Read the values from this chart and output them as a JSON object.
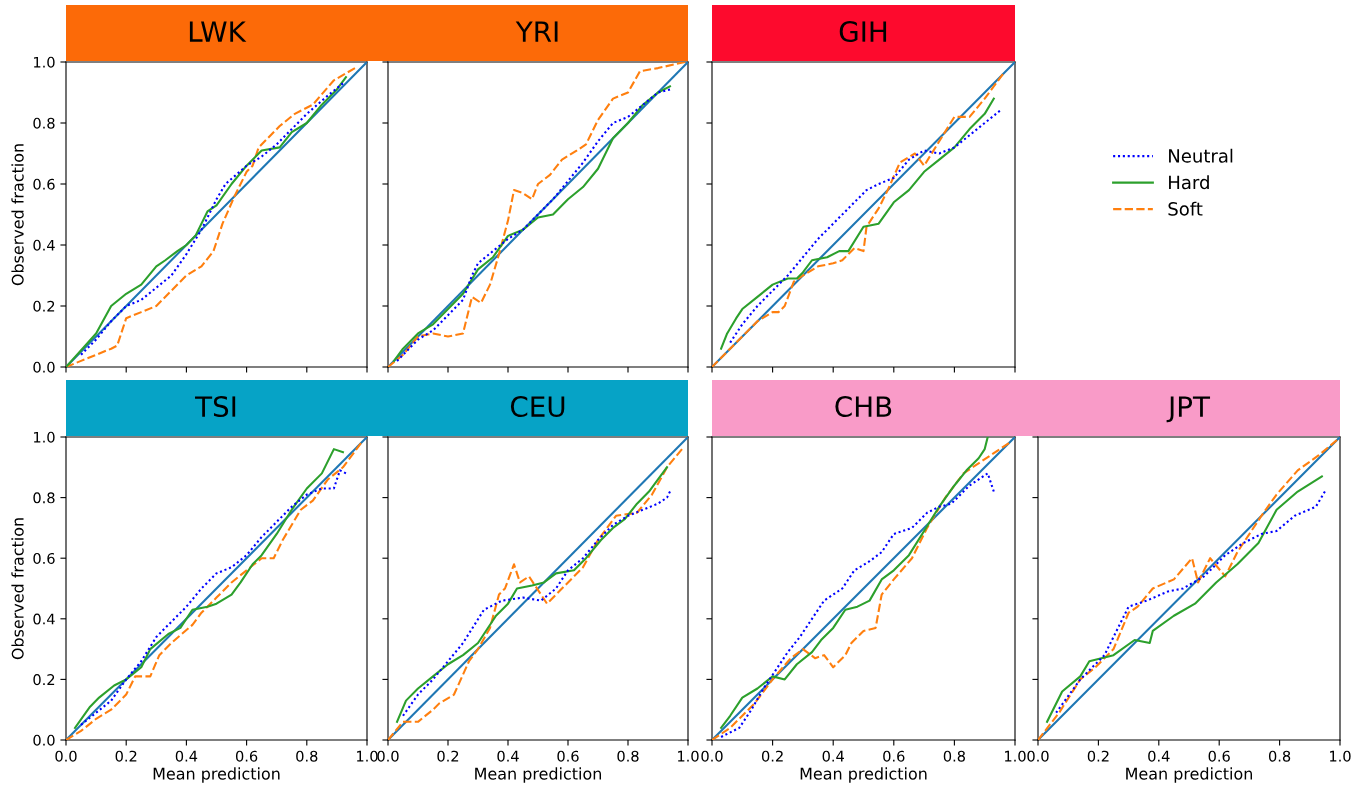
{
  "chart_data": [
    {
      "type": "line",
      "title": "LWK",
      "ylabel": "Observed fraction",
      "xlim": [
        0,
        1
      ],
      "ylim": [
        0,
        1
      ],
      "xticks": [
        {
          "value": 0,
          "label": null
        },
        {
          "value": 0.2,
          "label": null
        },
        {
          "value": 0.4,
          "label": null
        },
        {
          "value": 0.6,
          "label": null
        },
        {
          "value": 0.8,
          "label": null
        },
        {
          "value": 1,
          "label": null
        }
      ],
      "yticks": [
        {
          "value": 0,
          "label": "0.0"
        },
        {
          "value": 0.2,
          "label": "0.2"
        },
        {
          "value": 0.4,
          "label": "0.4"
        },
        {
          "value": 0.6,
          "label": "0.6"
        },
        {
          "value": 0.8,
          "label": "0.8"
        },
        {
          "value": 1,
          "label": "1.0"
        }
      ],
      "tick_labels": "y",
      "series": [
        {
          "color": "#0000ff",
          "line_style": "dotted",
          "x": [
            0.05,
            0.1,
            0.15,
            0.2,
            0.25,
            0.3,
            0.35,
            0.4,
            0.45,
            0.5,
            0.53,
            0.6,
            0.65,
            0.7,
            0.75,
            0.8,
            0.87,
            0.92
          ],
          "values": [
            0.04,
            0.09,
            0.15,
            0.2,
            0.22,
            0.26,
            0.3,
            0.37,
            0.45,
            0.55,
            0.6,
            0.66,
            0.69,
            0.73,
            0.78,
            0.83,
            0.89,
            0.93
          ]
        },
        {
          "color": "#2ca02c",
          "line_style": "solid",
          "x": [
            0.0,
            0.1,
            0.15,
            0.2,
            0.25,
            0.3,
            0.33,
            0.37,
            0.4,
            0.43,
            0.47,
            0.5,
            0.55,
            0.6,
            0.65,
            0.71,
            0.75,
            0.8,
            0.85,
            0.9,
            0.93
          ],
          "values": [
            0.0,
            0.11,
            0.2,
            0.24,
            0.27,
            0.33,
            0.35,
            0.38,
            0.4,
            0.43,
            0.51,
            0.53,
            0.6,
            0.66,
            0.71,
            0.72,
            0.77,
            0.8,
            0.86,
            0.91,
            0.95
          ]
        },
        {
          "color": "#ff7f0e",
          "line_style": "dashed",
          "x": [
            0.0,
            0.05,
            0.1,
            0.15,
            0.17,
            0.2,
            0.25,
            0.3,
            0.35,
            0.4,
            0.45,
            0.49,
            0.52,
            0.56,
            0.6,
            0.62,
            0.64,
            0.67,
            0.71,
            0.76,
            0.82,
            0.89,
            0.96
          ],
          "values": [
            0.0,
            0.02,
            0.04,
            0.06,
            0.07,
            0.16,
            0.18,
            0.2,
            0.25,
            0.3,
            0.33,
            0.38,
            0.47,
            0.56,
            0.64,
            0.66,
            0.72,
            0.75,
            0.79,
            0.83,
            0.86,
            0.94,
            0.98
          ]
        },
        {
          "color": "#1f77b4",
          "line_style": "solid",
          "x": [
            0,
            1
          ],
          "values": [
            0,
            1
          ]
        }
      ]
    },
    {
      "type": "line",
      "title": "YRI",
      "xlim": [
        0,
        1
      ],
      "ylim": [
        0,
        1
      ],
      "xticks": [
        {
          "value": 0,
          "label": null
        },
        {
          "value": 0.2,
          "label": null
        },
        {
          "value": 0.4,
          "label": null
        },
        {
          "value": 0.6,
          "label": null
        },
        {
          "value": 0.8,
          "label": null
        },
        {
          "value": 1,
          "label": null
        }
      ],
      "yticks": [
        {
          "value": 0,
          "label": null
        },
        {
          "value": 0.2,
          "label": null
        },
        {
          "value": 0.4,
          "label": null
        },
        {
          "value": 0.6,
          "label": null
        },
        {
          "value": 0.8,
          "label": null
        },
        {
          "value": 1,
          "label": null
        }
      ],
      "tick_labels": false,
      "series": [
        {
          "color": "#0000ff",
          "line_style": "dotted",
          "x": [
            0.03,
            0.1,
            0.15,
            0.2,
            0.25,
            0.28,
            0.3,
            0.35,
            0.4,
            0.45,
            0.5,
            0.55,
            0.6,
            0.65,
            0.7,
            0.75,
            0.8,
            0.85,
            0.9,
            0.94
          ],
          "values": [
            0.02,
            0.09,
            0.12,
            0.17,
            0.22,
            0.3,
            0.34,
            0.38,
            0.42,
            0.45,
            0.5,
            0.55,
            0.61,
            0.67,
            0.74,
            0.8,
            0.82,
            0.86,
            0.9,
            0.91
          ]
        },
        {
          "color": "#2ca02c",
          "line_style": "solid",
          "x": [
            0.02,
            0.05,
            0.1,
            0.15,
            0.2,
            0.25,
            0.3,
            0.35,
            0.4,
            0.45,
            0.5,
            0.55,
            0.6,
            0.65,
            0.7,
            0.75,
            0.8,
            0.85,
            0.9,
            0.94
          ],
          "values": [
            0.02,
            0.06,
            0.11,
            0.14,
            0.19,
            0.24,
            0.32,
            0.36,
            0.43,
            0.45,
            0.49,
            0.5,
            0.55,
            0.59,
            0.65,
            0.75,
            0.8,
            0.86,
            0.9,
            0.92
          ]
        },
        {
          "color": "#ff7f0e",
          "line_style": "dashed",
          "x": [
            0.0,
            0.05,
            0.1,
            0.15,
            0.2,
            0.25,
            0.28,
            0.31,
            0.34,
            0.37,
            0.4,
            0.42,
            0.45,
            0.48,
            0.5,
            0.54,
            0.58,
            0.63,
            0.66,
            0.7,
            0.75,
            0.8,
            0.84,
            0.9,
            0.99
          ],
          "values": [
            0.0,
            0.04,
            0.1,
            0.11,
            0.1,
            0.11,
            0.23,
            0.21,
            0.27,
            0.37,
            0.48,
            0.58,
            0.57,
            0.55,
            0.6,
            0.63,
            0.68,
            0.71,
            0.73,
            0.81,
            0.88,
            0.9,
            0.97,
            0.98,
            1.0
          ]
        },
        {
          "color": "#1f77b4",
          "line_style": "solid",
          "x": [
            0,
            1
          ],
          "values": [
            0,
            1
          ]
        }
      ]
    },
    {
      "type": "line",
      "title": "GIH",
      "xlim": [
        0,
        1
      ],
      "ylim": [
        0,
        1
      ],
      "xticks": [
        {
          "value": 0,
          "label": null
        },
        {
          "value": 0.2,
          "label": null
        },
        {
          "value": 0.4,
          "label": null
        },
        {
          "value": 0.6,
          "label": null
        },
        {
          "value": 0.8,
          "label": null
        },
        {
          "value": 1,
          "label": null
        }
      ],
      "yticks": [
        {
          "value": 0,
          "label": null
        },
        {
          "value": 0.2,
          "label": null
        },
        {
          "value": 0.4,
          "label": null
        },
        {
          "value": 0.6,
          "label": null
        },
        {
          "value": 0.8,
          "label": null
        },
        {
          "value": 1,
          "label": null
        }
      ],
      "tick_labels": false,
      "legend": "right",
      "series": [
        {
          "name": "Neutral",
          "color": "#0000ff",
          "line_style": "dotted",
          "x": [
            0.06,
            0.1,
            0.15,
            0.2,
            0.25,
            0.3,
            0.35,
            0.42,
            0.51,
            0.55,
            0.6,
            0.65,
            0.7,
            0.75,
            0.8,
            0.85,
            0.9,
            0.95
          ],
          "values": [
            0.08,
            0.14,
            0.2,
            0.25,
            0.3,
            0.36,
            0.42,
            0.49,
            0.58,
            0.6,
            0.62,
            0.68,
            0.71,
            0.7,
            0.72,
            0.76,
            0.8,
            0.84
          ]
        },
        {
          "name": "Hard",
          "color": "#2ca02c",
          "line_style": "solid",
          "x": [
            0.03,
            0.05,
            0.08,
            0.1,
            0.15,
            0.2,
            0.25,
            0.28,
            0.3,
            0.33,
            0.38,
            0.42,
            0.45,
            0.5,
            0.55,
            0.6,
            0.65,
            0.7,
            0.75,
            0.8,
            0.85,
            0.9,
            0.93
          ],
          "values": [
            0.06,
            0.11,
            0.16,
            0.19,
            0.23,
            0.27,
            0.29,
            0.29,
            0.31,
            0.35,
            0.36,
            0.38,
            0.38,
            0.46,
            0.47,
            0.54,
            0.58,
            0.64,
            0.68,
            0.72,
            0.78,
            0.83,
            0.88
          ]
        },
        {
          "name": "Soft",
          "color": "#ff7f0e",
          "line_style": "dashed",
          "x": [
            0.0,
            0.05,
            0.1,
            0.15,
            0.2,
            0.22,
            0.24,
            0.27,
            0.3,
            0.35,
            0.4,
            0.43,
            0.47,
            0.5,
            0.51,
            0.55,
            0.58,
            0.62,
            0.67,
            0.7,
            0.75,
            0.8,
            0.85,
            0.9,
            0.96
          ],
          "values": [
            0.0,
            0.05,
            0.1,
            0.15,
            0.18,
            0.18,
            0.2,
            0.28,
            0.3,
            0.33,
            0.34,
            0.35,
            0.39,
            0.38,
            0.46,
            0.52,
            0.58,
            0.67,
            0.7,
            0.66,
            0.74,
            0.82,
            0.82,
            0.88,
            0.96
          ]
        },
        {
          "color": "#1f77b4",
          "line_style": "solid",
          "x": [
            0,
            1
          ],
          "values": [
            0,
            1
          ]
        }
      ]
    },
    {
      "type": "line",
      "title": "TSI",
      "xlabel": "Mean prediction",
      "ylabel": "Observed fraction",
      "xlim": [
        0,
        1
      ],
      "ylim": [
        0,
        1
      ],
      "xticks": [
        {
          "value": 0,
          "label": "0.0"
        },
        {
          "value": 0.2,
          "label": "0.2"
        },
        {
          "value": 0.4,
          "label": "0.4"
        },
        {
          "value": 0.6,
          "label": "0.6"
        },
        {
          "value": 0.8,
          "label": "0.8"
        },
        {
          "value": 1,
          "label": "1.0"
        }
      ],
      "yticks": [
        {
          "value": 0,
          "label": "0.0"
        },
        {
          "value": 0.2,
          "label": "0.2"
        },
        {
          "value": 0.4,
          "label": "0.4"
        },
        {
          "value": 0.6,
          "label": "0.6"
        },
        {
          "value": 0.8,
          "label": "0.8"
        },
        {
          "value": 1,
          "label": "1.0"
        }
      ],
      "series": [
        {
          "color": "#0000ff",
          "line_style": "dotted",
          "x": [
            0.05,
            0.1,
            0.15,
            0.2,
            0.25,
            0.3,
            0.35,
            0.4,
            0.45,
            0.5,
            0.55,
            0.6,
            0.65,
            0.7,
            0.75,
            0.8,
            0.85,
            0.89,
            0.91,
            0.93
          ],
          "values": [
            0.05,
            0.09,
            0.13,
            0.2,
            0.26,
            0.34,
            0.39,
            0.44,
            0.5,
            0.55,
            0.57,
            0.61,
            0.67,
            0.72,
            0.77,
            0.81,
            0.83,
            0.83,
            0.89,
            0.88
          ]
        },
        {
          "color": "#2ca02c",
          "line_style": "solid",
          "x": [
            0.03,
            0.08,
            0.11,
            0.16,
            0.2,
            0.25,
            0.28,
            0.34,
            0.38,
            0.42,
            0.47,
            0.5,
            0.55,
            0.58,
            0.62,
            0.65,
            0.7,
            0.75,
            0.8,
            0.85,
            0.89,
            0.92
          ],
          "values": [
            0.04,
            0.11,
            0.14,
            0.18,
            0.2,
            0.24,
            0.3,
            0.35,
            0.37,
            0.43,
            0.44,
            0.45,
            0.48,
            0.52,
            0.58,
            0.61,
            0.68,
            0.76,
            0.83,
            0.88,
            0.96,
            0.95
          ]
        },
        {
          "color": "#ff7f0e",
          "line_style": "dashed",
          "x": [
            0.0,
            0.05,
            0.1,
            0.15,
            0.2,
            0.23,
            0.28,
            0.31,
            0.35,
            0.42,
            0.45,
            0.5,
            0.55,
            0.6,
            0.65,
            0.69,
            0.72,
            0.78,
            0.82,
            0.87,
            0.92,
            0.98
          ],
          "values": [
            0.0,
            0.03,
            0.07,
            0.1,
            0.15,
            0.21,
            0.21,
            0.28,
            0.32,
            0.38,
            0.42,
            0.47,
            0.52,
            0.56,
            0.6,
            0.6,
            0.66,
            0.76,
            0.79,
            0.86,
            0.9,
            0.98
          ]
        },
        {
          "color": "#1f77b4",
          "line_style": "solid",
          "x": [
            0,
            1
          ],
          "values": [
            0,
            1
          ]
        }
      ]
    },
    {
      "type": "line",
      "title": "CEU",
      "xlabel": "Mean prediction",
      "xlim": [
        0,
        1
      ],
      "ylim": [
        0,
        1
      ],
      "xticks": [
        {
          "value": 0,
          "label": "0.0"
        },
        {
          "value": 0.2,
          "label": "0.2"
        },
        {
          "value": 0.4,
          "label": "0.4"
        },
        {
          "value": 0.6,
          "label": "0.6"
        },
        {
          "value": 0.8,
          "label": "0.8"
        },
        {
          "value": 1,
          "label": "1.0"
        }
      ],
      "yticks": [
        {
          "value": 0,
          "label": null
        },
        {
          "value": 0.2,
          "label": null
        },
        {
          "value": 0.4,
          "label": null
        },
        {
          "value": 0.6,
          "label": null
        },
        {
          "value": 0.8,
          "label": null
        },
        {
          "value": 1,
          "label": null
        }
      ],
      "tick_labels": "x",
      "series": [
        {
          "color": "#0000ff",
          "line_style": "dotted",
          "x": [
            0.05,
            0.1,
            0.15,
            0.2,
            0.25,
            0.32,
            0.38,
            0.45,
            0.51,
            0.56,
            0.6,
            0.65,
            0.7,
            0.75,
            0.8,
            0.85,
            0.9,
            0.93,
            0.94
          ],
          "values": [
            0.08,
            0.15,
            0.2,
            0.26,
            0.32,
            0.43,
            0.46,
            0.47,
            0.46,
            0.5,
            0.56,
            0.6,
            0.66,
            0.71,
            0.74,
            0.76,
            0.78,
            0.8,
            0.82
          ]
        },
        {
          "color": "#2ca02c",
          "line_style": "solid",
          "x": [
            0.03,
            0.06,
            0.1,
            0.15,
            0.2,
            0.25,
            0.3,
            0.36,
            0.4,
            0.43,
            0.48,
            0.52,
            0.56,
            0.62,
            0.66,
            0.71,
            0.75,
            0.79,
            0.83,
            0.87,
            0.9,
            0.93
          ],
          "values": [
            0.06,
            0.13,
            0.17,
            0.21,
            0.25,
            0.28,
            0.32,
            0.41,
            0.45,
            0.5,
            0.51,
            0.52,
            0.55,
            0.56,
            0.6,
            0.66,
            0.7,
            0.73,
            0.78,
            0.82,
            0.86,
            0.9
          ]
        },
        {
          "color": "#ff7f0e",
          "line_style": "dashed",
          "x": [
            0.0,
            0.05,
            0.1,
            0.15,
            0.17,
            0.22,
            0.27,
            0.3,
            0.34,
            0.37,
            0.39,
            0.42,
            0.44,
            0.47,
            0.53,
            0.59,
            0.65,
            0.7,
            0.76,
            0.83,
            0.88,
            0.93,
            0.98
          ],
          "values": [
            0.0,
            0.06,
            0.06,
            0.1,
            0.12,
            0.15,
            0.26,
            0.3,
            0.37,
            0.48,
            0.5,
            0.58,
            0.52,
            0.54,
            0.45,
            0.51,
            0.57,
            0.66,
            0.74,
            0.75,
            0.81,
            0.9,
            0.96
          ]
        },
        {
          "color": "#1f77b4",
          "line_style": "solid",
          "x": [
            0,
            1
          ],
          "values": [
            0,
            1
          ]
        }
      ]
    },
    {
      "type": "line",
      "title": "CHB",
      "xlabel": "Mean prediction",
      "xlim": [
        0,
        1
      ],
      "ylim": [
        0,
        1
      ],
      "xticks": [
        {
          "value": 0,
          "label": "0.0"
        },
        {
          "value": 0.2,
          "label": "0.2"
        },
        {
          "value": 0.4,
          "label": "0.4"
        },
        {
          "value": 0.6,
          "label": "0.6"
        },
        {
          "value": 0.8,
          "label": "0.8"
        },
        {
          "value": 1,
          "label": "1.0"
        }
      ],
      "yticks": [
        {
          "value": 0,
          "label": null
        },
        {
          "value": 0.2,
          "label": null
        },
        {
          "value": 0.4,
          "label": null
        },
        {
          "value": 0.6,
          "label": null
        },
        {
          "value": 0.8,
          "label": null
        },
        {
          "value": 1,
          "label": null
        }
      ],
      "tick_labels": "x",
      "series": [
        {
          "color": "#0000ff",
          "line_style": "dotted",
          "x": [
            0.03,
            0.09,
            0.13,
            0.17,
            0.21,
            0.25,
            0.29,
            0.33,
            0.37,
            0.43,
            0.47,
            0.52,
            0.56,
            0.6,
            0.66,
            0.71,
            0.75,
            0.79,
            0.85,
            0.91,
            0.93
          ],
          "values": [
            0.01,
            0.04,
            0.1,
            0.17,
            0.23,
            0.29,
            0.34,
            0.4,
            0.46,
            0.5,
            0.56,
            0.59,
            0.62,
            0.68,
            0.7,
            0.75,
            0.77,
            0.78,
            0.84,
            0.88,
            0.82
          ]
        },
        {
          "color": "#2ca02c",
          "line_style": "solid",
          "x": [
            0.03,
            0.06,
            0.1,
            0.15,
            0.2,
            0.24,
            0.28,
            0.33,
            0.36,
            0.4,
            0.44,
            0.48,
            0.52,
            0.56,
            0.6,
            0.65,
            0.7,
            0.75,
            0.8,
            0.84,
            0.88,
            0.9,
            0.91
          ],
          "values": [
            0.04,
            0.08,
            0.14,
            0.17,
            0.21,
            0.2,
            0.25,
            0.29,
            0.33,
            0.37,
            0.43,
            0.44,
            0.46,
            0.53,
            0.56,
            0.61,
            0.69,
            0.77,
            0.84,
            0.89,
            0.93,
            0.96,
            1.0
          ]
        },
        {
          "color": "#ff7f0e",
          "line_style": "dashed",
          "x": [
            0.0,
            0.06,
            0.1,
            0.14,
            0.2,
            0.26,
            0.3,
            0.34,
            0.37,
            0.4,
            0.44,
            0.46,
            0.5,
            0.54,
            0.56,
            0.6,
            0.66,
            0.71,
            0.77,
            0.83,
            0.92,
            0.98
          ],
          "values": [
            0.0,
            0.04,
            0.08,
            0.12,
            0.2,
            0.27,
            0.3,
            0.27,
            0.28,
            0.24,
            0.28,
            0.32,
            0.36,
            0.37,
            0.48,
            0.53,
            0.6,
            0.7,
            0.8,
            0.88,
            0.94,
            0.98
          ]
        },
        {
          "color": "#1f77b4",
          "line_style": "solid",
          "x": [
            0,
            1
          ],
          "values": [
            0,
            1
          ]
        }
      ]
    },
    {
      "type": "line",
      "title": "JPT",
      "xlabel": "Mean prediction",
      "xlim": [
        0,
        1
      ],
      "ylim": [
        0,
        1
      ],
      "xticks": [
        {
          "value": 0,
          "label": "0.0"
        },
        {
          "value": 0.2,
          "label": "0.2"
        },
        {
          "value": 0.4,
          "label": "0.4"
        },
        {
          "value": 0.6,
          "label": "0.6"
        },
        {
          "value": 0.8,
          "label": "0.8"
        },
        {
          "value": 1,
          "label": "1.0"
        }
      ],
      "yticks": [
        {
          "value": 0,
          "label": null
        },
        {
          "value": 0.2,
          "label": null
        },
        {
          "value": 0.4,
          "label": null
        },
        {
          "value": 0.6,
          "label": null
        },
        {
          "value": 0.8,
          "label": null
        },
        {
          "value": 1,
          "label": null
        }
      ],
      "tick_labels": "x",
      "series": [
        {
          "color": "#0000ff",
          "line_style": "dotted",
          "x": [
            0.06,
            0.14,
            0.22,
            0.3,
            0.36,
            0.43,
            0.48,
            0.55,
            0.62,
            0.68,
            0.74,
            0.79,
            0.85,
            0.92,
            0.95
          ],
          "values": [
            0.09,
            0.2,
            0.28,
            0.44,
            0.46,
            0.49,
            0.5,
            0.54,
            0.61,
            0.65,
            0.68,
            0.69,
            0.74,
            0.77,
            0.82
          ]
        },
        {
          "color": "#2ca02c",
          "line_style": "solid",
          "x": [
            0.03,
            0.08,
            0.14,
            0.17,
            0.25,
            0.32,
            0.37,
            0.38,
            0.45,
            0.52,
            0.59,
            0.66,
            0.73,
            0.79,
            0.86,
            0.94
          ],
          "values": [
            0.06,
            0.16,
            0.21,
            0.26,
            0.28,
            0.33,
            0.32,
            0.36,
            0.41,
            0.45,
            0.52,
            0.58,
            0.65,
            0.76,
            0.82,
            0.87
          ]
        },
        {
          "color": "#ff7f0e",
          "line_style": "dashed",
          "x": [
            0.0,
            0.07,
            0.14,
            0.19,
            0.25,
            0.3,
            0.33,
            0.38,
            0.45,
            0.51,
            0.53,
            0.57,
            0.62,
            0.66,
            0.74,
            0.79,
            0.86,
            0.93,
            0.99
          ],
          "values": [
            0.0,
            0.09,
            0.2,
            0.24,
            0.3,
            0.42,
            0.44,
            0.5,
            0.53,
            0.6,
            0.52,
            0.6,
            0.54,
            0.62,
            0.74,
            0.81,
            0.89,
            0.94,
            0.99
          ]
        },
        {
          "color": "#1f77b4",
          "line_style": "solid",
          "x": [
            0,
            1
          ],
          "values": [
            0,
            1
          ]
        }
      ]
    }
  ]
}
